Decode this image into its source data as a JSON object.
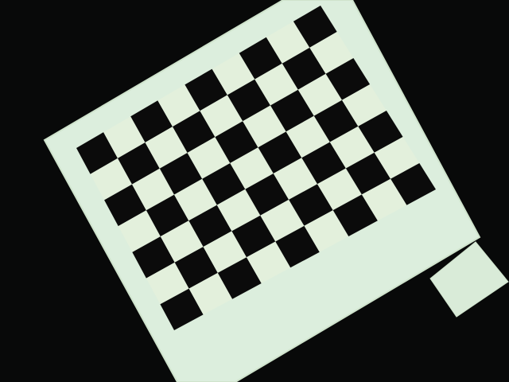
{
  "scene": {
    "subject": "calibration-checkerboard",
    "pattern": {
      "rows": 7,
      "cols": 9,
      "dark_color": "#0b0b0b",
      "light_color": "#e3f0dc"
    },
    "colors": {
      "background": "#080909",
      "board": "#dceedd",
      "board_edge": "#cfe3cc",
      "card": "#d9ebd8"
    }
  }
}
